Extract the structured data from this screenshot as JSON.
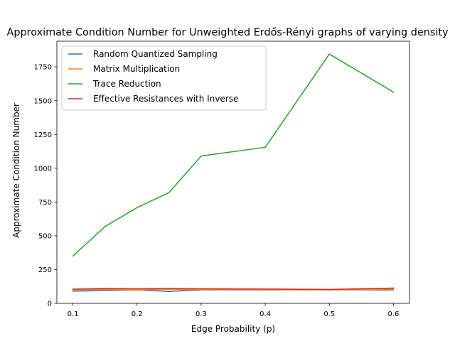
{
  "chart_data": {
    "type": "line",
    "title": "Approximate Condition Number for Unweighted Erdős-Rényi graphs of varying density",
    "xlabel": "Edge Probability (p)",
    "ylabel": "Approximate Condition Number",
    "x": [
      0.1,
      0.15,
      0.2,
      0.25,
      0.3,
      0.4,
      0.5,
      0.6
    ],
    "xlim": [
      0.075,
      0.625
    ],
    "ylim": [
      0,
      1940
    ],
    "xticks": [
      0.1,
      0.2,
      0.3,
      0.4,
      0.5,
      0.6
    ],
    "xtick_labels": [
      "0.1",
      "0.2",
      "0.3",
      "0.4",
      "0.5",
      "0.6"
    ],
    "yticks": [
      0,
      250,
      500,
      750,
      1000,
      1250,
      1500,
      1750
    ],
    "ytick_labels": [
      "0",
      "250",
      "500",
      "750",
      "1000",
      "1250",
      "1500",
      "1750"
    ],
    "grid": false,
    "legend_position": "top-left",
    "series": [
      {
        "name": "Random Quantized Sampling",
        "color": "#1f77b4",
        "values": [
          90,
          95,
          100,
          88,
          100,
          100,
          100,
          100
        ]
      },
      {
        "name": "Matrix Multiplication",
        "color": "#ff7f0e",
        "values": [
          100,
          103,
          100,
          103,
          102,
          102,
          100,
          105
        ]
      },
      {
        "name": "Trace Reduction",
        "color": "#2ca02c",
        "values": [
          350,
          568,
          708,
          820,
          1090,
          1155,
          1845,
          1563
        ]
      },
      {
        "name": "Effective Resistances with Inverse",
        "color": "#d62728",
        "values": [
          105,
          110,
          108,
          110,
          108,
          106,
          103,
          113
        ]
      }
    ]
  }
}
